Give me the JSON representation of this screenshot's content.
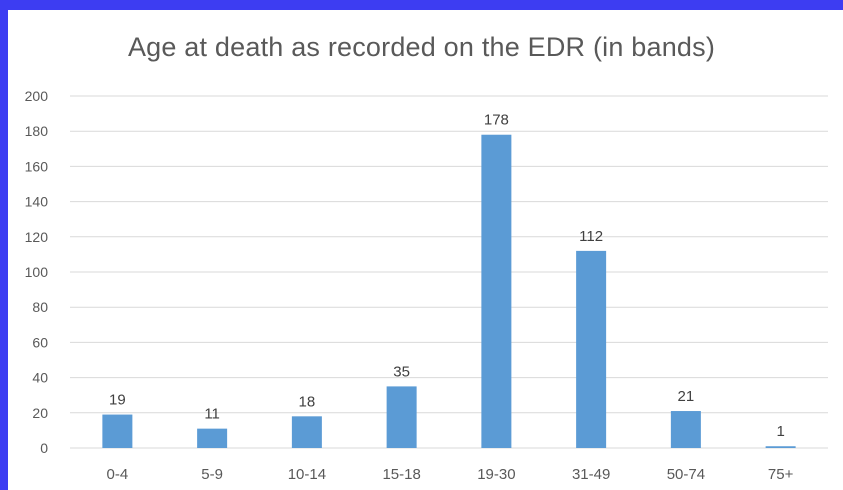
{
  "chart_data": {
    "type": "bar",
    "title": "Age at death as recorded on the EDR (in bands)",
    "xlabel": "",
    "ylabel": "",
    "categories": [
      "0-4",
      "5-9",
      "10-14",
      "15-18",
      "19-30",
      "31-49",
      "50-74",
      "75+"
    ],
    "values": [
      19,
      11,
      18,
      35,
      178,
      112,
      21,
      1
    ],
    "ylim": [
      0,
      200
    ],
    "yticks": [
      0,
      20,
      40,
      60,
      80,
      100,
      120,
      140,
      160,
      180,
      200
    ],
    "grid": true,
    "legend": "none",
    "bar_color": "#5b9bd5",
    "grid_color": "#d9d9d9",
    "background_frame_color": "#3d3df2"
  }
}
